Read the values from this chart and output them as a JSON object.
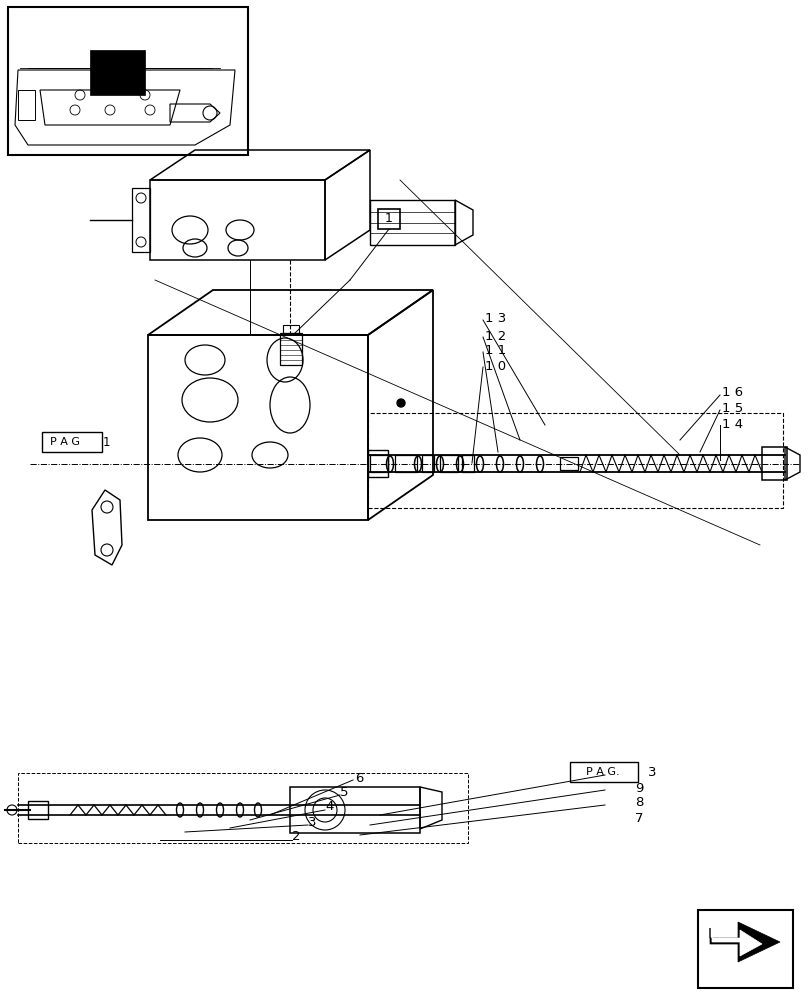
{
  "bg_color": "#ffffff",
  "line_color": "#000000",
  "fig_width": 8.08,
  "fig_height": 10.0,
  "dpi": 100
}
